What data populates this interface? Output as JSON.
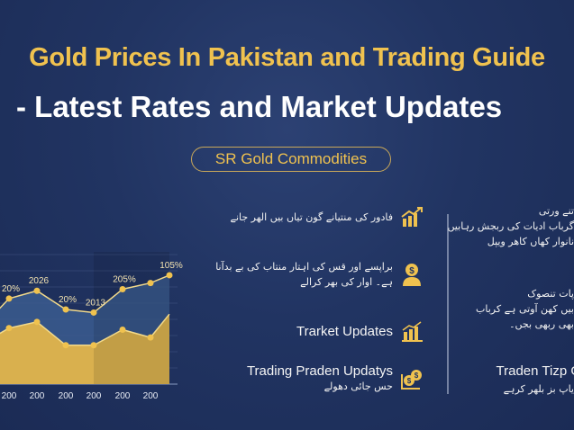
{
  "header": {
    "title_line1": "Gold Prices In Pakistan and Trading Guide",
    "title_line2": "- Latest Rates and Market Updates",
    "badge": "SR Gold Commodities"
  },
  "colors": {
    "background": "#213462",
    "gold": "#f0c24f",
    "upper_area": "#3b5c8f",
    "lower_area": "#d9b04e"
  },
  "chart_data": {
    "type": "area",
    "categories": [
      "",
      "200",
      "200",
      "200",
      "200",
      "200",
      "200",
      ""
    ],
    "series": [
      {
        "values": [
          44,
          55,
          60,
          48,
          46,
          61,
          65,
          70
        ]
      },
      {
        "values": [
          30,
          36,
          40,
          25,
          25,
          35,
          30,
          45
        ]
      }
    ],
    "data_labels": [
      {
        "index": 1,
        "text": "20%"
      },
      {
        "index": 2,
        "text": "2026"
      },
      {
        "index": 3,
        "text": "20%"
      },
      {
        "index": 4,
        "text": "2013"
      },
      {
        "index": 5,
        "text": "205%"
      },
      {
        "index": 7,
        "text": "105%"
      }
    ],
    "ylim": [
      0,
      85
    ],
    "grid": true,
    "title": "",
    "xlabel": "",
    "ylabel": ""
  },
  "middle": {
    "items": [
      {
        "icon": "bar-chart-up-icon",
        "urdu": "فادور کی منتیانے گون تیاں بیں الھر جانے"
      },
      {
        "icon": "person-dollar-icon",
        "urdu": "براپسے اور قس کی اہتار منتاب کی بے بدآنا ہے۔ اوار کی بھر کرالے"
      },
      {
        "icon": "bar-chart-up-icon",
        "text": "Trarket Updates"
      },
      {
        "icon": "coins-dollar-icon",
        "text": "Trading Praden Updatys",
        "urdu": "حس جائی دھولے"
      }
    ]
  },
  "right": {
    "block1": "تنے ورتی\nگرباب ادیات کی ربجش رہابیں\nنانوار کھاں کاھر ویپل",
    "block2": "پات تنصوک\nبیں کھن آوتی ہے کرباب\nبھی ربھی بجں۔",
    "heading": "Traden Tizp G",
    "urdu": "یاپ بز بلھر کرہے"
  }
}
